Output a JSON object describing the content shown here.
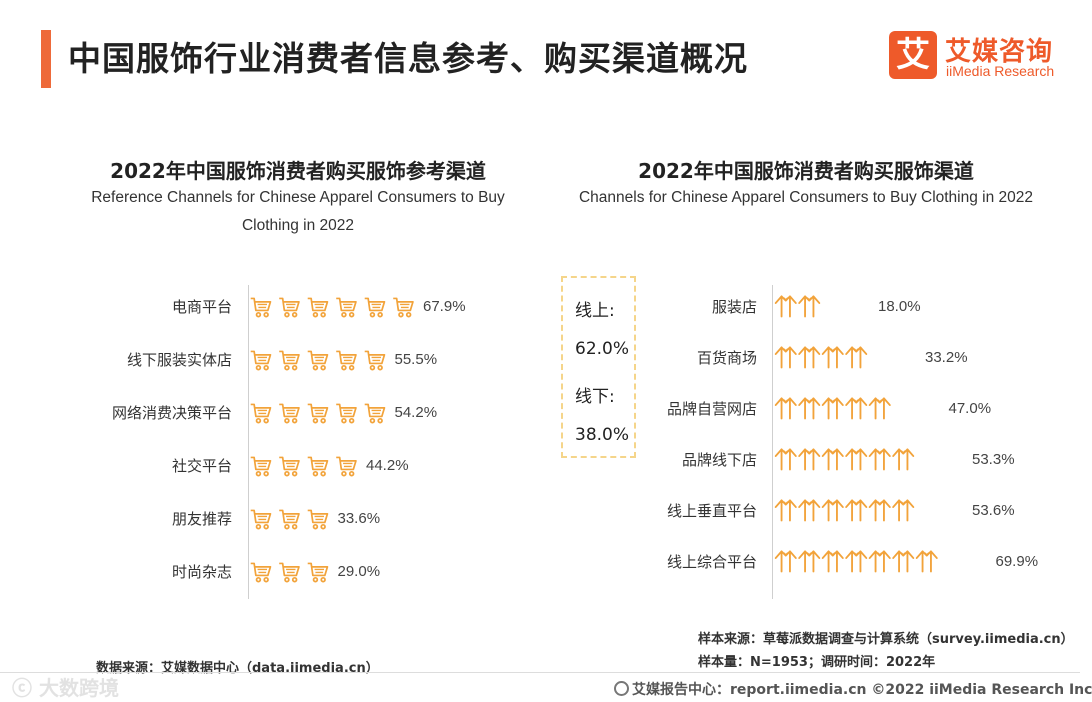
{
  "header": {
    "title": "中国服饰行业消费者信息参考、购买渠道概况",
    "logo_mark": "艾",
    "logo_cn": "艾媒咨询",
    "logo_en": "iiMedia Research"
  },
  "colors": {
    "accent": "#ee6a3a",
    "icon": "#f2a33a",
    "box_border": "#f5d58a"
  },
  "left_chart": {
    "title": "2022年中国服饰消费者购买服饰参考渠道",
    "subtitle_line1": "Reference Channels for Chinese Apparel Consumers to Buy",
    "subtitle_line2": "Clothing in 2022"
  },
  "right_chart": {
    "title": "2022年中国服饰消费者购买服饰渠道",
    "subtitle": "Channels for Chinese Apparel Consumers to Buy Clothing in 2022",
    "box": {
      "online_label": "线上:",
      "online_value": "62.0%",
      "offline_label": "线下:",
      "offline_value": "38.0%"
    }
  },
  "chart_data": [
    {
      "type": "bar",
      "style": "pictogram-cart",
      "title": "2022年中国服饰消费者购买服饰参考渠道",
      "subtitle": "Reference Channels for Chinese Apparel Consumers to Buy Clothing in 2022",
      "categories": [
        "电商平台",
        "线下服装实体店",
        "网络消费决策平台",
        "社交平台",
        "朋友推荐",
        "时尚杂志"
      ],
      "values": [
        67.9,
        55.5,
        54.2,
        44.2,
        33.6,
        29.0
      ],
      "labels": [
        "67.9%",
        "55.5%",
        "54.2%",
        "44.2%",
        "33.6%",
        "29.0%"
      ],
      "unit": "%",
      "icon_unit": 12
    },
    {
      "type": "bar",
      "style": "pictogram-hanger",
      "title": "2022年中国服饰消费者购买服饰渠道",
      "subtitle": "Channels for Chinese Apparel Consumers to Buy Clothing in 2022",
      "categories": [
        "服装店",
        "百货商场",
        "品牌自营网店",
        "品牌线下店",
        "线上垂直平台",
        "线上综合平台"
      ],
      "values": [
        18.0,
        33.2,
        47.0,
        53.3,
        53.6,
        69.9
      ],
      "labels": [
        "18.0%",
        "33.2%",
        "47.0%",
        "53.3%",
        "53.6%",
        "69.9%"
      ],
      "unit": "%",
      "icon_unit": 10.4
    }
  ],
  "notes": {
    "left_source": "数据来源：艾媒数据中心（data.iimedia.cn）",
    "right_source": "样本来源：草莓派数据调查与计算系统（survey.iimedia.cn）",
    "sample": "样本量：N=1953；调研时间：2022年"
  },
  "footer": {
    "text": "艾媒报告中心：report.iimedia.cn   ©2022  iiMedia Research  Inc",
    "watermark": "ⓒ 大数跨境"
  }
}
